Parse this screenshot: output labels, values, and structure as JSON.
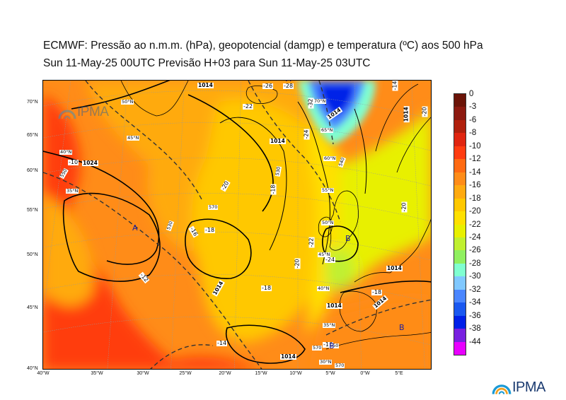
{
  "header": {
    "title": "ECMWF:  Pressão ao n.m.m. (hPa), geopotencial (damgp) e temperatura (ºC) aos 500 hPa",
    "subtitle": "Sun 11-May-25 00UTC Previsão H+03 para Sun 11-May-25 03UTC"
  },
  "map": {
    "lat_ticks": [
      "70°N",
      "65°N",
      "60°N",
      "55°N",
      "50°N",
      "45°N",
      "40°N"
    ],
    "lon_ticks": [
      "40°W",
      "35°W",
      "30°W",
      "25°W",
      "20°W",
      "15°W",
      "10°W",
      "5°W",
      "0°W",
      "5°E"
    ],
    "inner_lat_labels": [
      "70°N",
      "65°N",
      "60°N",
      "55°N",
      "50°N",
      "45°N",
      "40°N",
      "35°N",
      "30°N",
      "50°N",
      "45°N",
      "40°N",
      "35°N"
    ],
    "pressure_labels": [
      "1014",
      "1024",
      "1014",
      "1014",
      "1014",
      "1014",
      "1014",
      "1014",
      "1014",
      "1014"
    ],
    "temperature_labels": [
      "-20",
      "-18",
      "-16",
      "-18",
      "-20",
      "-22",
      "-24",
      "-18",
      "-14",
      "-12",
      "-10",
      "-22",
      "-20",
      "-26",
      "-28",
      "-32",
      "-24",
      "-16",
      "-18",
      "-20",
      "-14"
    ],
    "geopotential_labels": [
      "570",
      "550",
      "530",
      "570",
      "570",
      "530",
      "540",
      "550"
    ],
    "pressure_centers": [
      {
        "type": "high",
        "letter": "A"
      },
      {
        "type": "high",
        "letter": "A"
      },
      {
        "type": "low",
        "letter": "B"
      },
      {
        "type": "low",
        "letter": "B"
      },
      {
        "type": "low",
        "letter": "B"
      }
    ]
  },
  "colorbar": {
    "labels": [
      "0",
      "-3",
      "-6",
      "-8",
      "-10",
      "-12",
      "-14",
      "-16",
      "-18",
      "-20",
      "-22",
      "-24",
      "-26",
      "-28",
      "-30",
      "-32",
      "-34",
      "-36",
      "-38",
      "-44"
    ],
    "colors": [
      "#6b1408",
      "#8c1a10",
      "#b0200d",
      "#e02510",
      "#ff3c10",
      "#ff6a12",
      "#ff8c18",
      "#ffaa10",
      "#ffc800",
      "#ffe000",
      "#e8f000",
      "#c0f030",
      "#90f060",
      "#80ffd0",
      "#80c8ff",
      "#4a86ff",
      "#1a58f0",
      "#0020e8",
      "#7820e0",
      "#e800ff"
    ]
  },
  "logos": {
    "main": "IPMA",
    "watermark": "IPMA"
  }
}
